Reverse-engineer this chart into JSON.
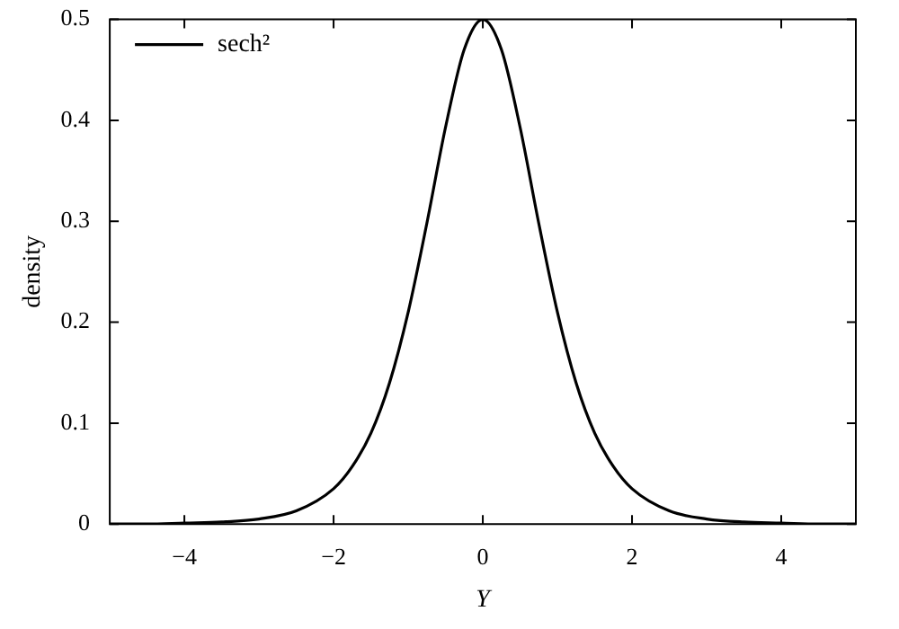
{
  "chart_data": {
    "type": "line",
    "xlabel": "Y",
    "ylabel": "density",
    "x": [
      -5,
      -4.5,
      -4,
      -3.5,
      -3,
      -2.5,
      -2,
      -1.75,
      -1.5,
      -1.25,
      -1,
      -0.75,
      -0.5,
      -0.25,
      0,
      0.25,
      0.5,
      0.75,
      1,
      1.25,
      1.5,
      1.75,
      2,
      2.5,
      3,
      3.5,
      4,
      4.5,
      5
    ],
    "series": [
      {
        "name": "sech²",
        "color": "#000000",
        "values": [
          0,
          0,
          0.001,
          0.002,
          0.005,
          0.013,
          0.035,
          0.057,
          0.09,
          0.14,
          0.21,
          0.298,
          0.393,
          0.47,
          0.5,
          0.47,
          0.393,
          0.298,
          0.21,
          0.14,
          0.09,
          0.057,
          0.035,
          0.013,
          0.005,
          0.002,
          0.001,
          0,
          0
        ]
      }
    ],
    "xlim": [
      -5,
      5
    ],
    "xticks": [
      -4,
      -2,
      0,
      2,
      4
    ],
    "ylim": [
      0,
      0.5
    ],
    "yticks": [
      0,
      0.1,
      0.2,
      0.3,
      0.4,
      0.5
    ],
    "legend": "top left",
    "marker": "none",
    "line_style": "solid"
  }
}
